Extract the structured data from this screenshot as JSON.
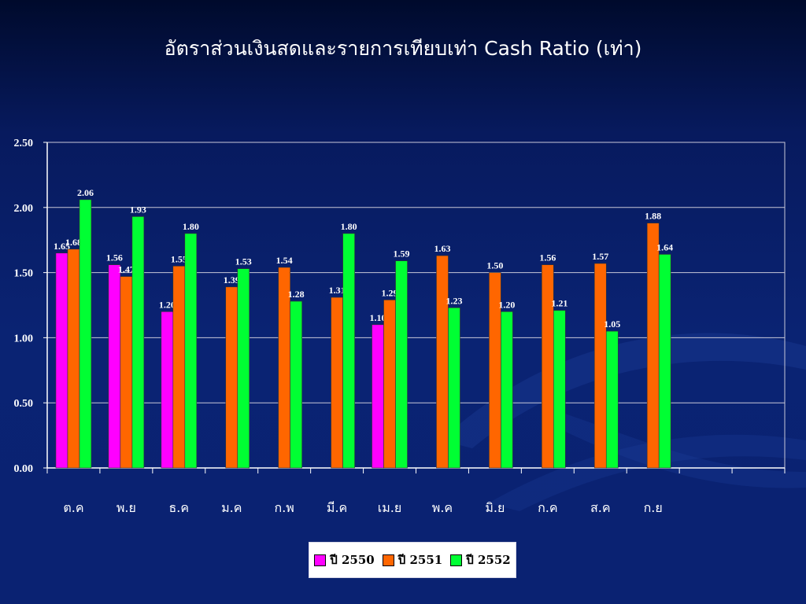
{
  "slide": {
    "title": "อัตราส่วนเงินสดและรายการเทียบเท่า Cash Ratio (เท่า)"
  },
  "chart_data": {
    "type": "bar",
    "title": "อัตราส่วนเงินสดและรายการเทียบเท่า Cash Ratio (เท่า)",
    "xlabel": "",
    "ylabel": "",
    "ylim": [
      0,
      2.5
    ],
    "yticks": [
      "0.00",
      "0.50",
      "1.00",
      "1.50",
      "2.00",
      "2.50"
    ],
    "grid": true,
    "legend_position": "bottom",
    "categories": [
      "ต.ค",
      "พ.ย",
      "ธ.ค",
      "ม.ค",
      "ก.พ",
      "มี.ค",
      "เม.ย",
      "พ.ค",
      "มิ.ย",
      "ก.ค",
      "ส.ค",
      "ก.ย",
      "",
      ""
    ],
    "series": [
      {
        "name": "ปี 2550",
        "color": "#ff00ff",
        "values": [
          1.65,
          1.56,
          1.2,
          null,
          null,
          null,
          1.1,
          null,
          null,
          null,
          null,
          null,
          null,
          null
        ]
      },
      {
        "name": "ปี 2551",
        "color": "#ff6600",
        "values": [
          1.68,
          1.47,
          1.55,
          1.39,
          1.54,
          1.31,
          1.29,
          1.63,
          1.5,
          1.56,
          1.57,
          1.88,
          null,
          null
        ]
      },
      {
        "name": "ปี 2552",
        "color": "#00ff33",
        "values": [
          2.06,
          1.93,
          1.8,
          1.53,
          1.28,
          1.8,
          1.59,
          1.23,
          1.2,
          1.21,
          1.05,
          1.64,
          null,
          null
        ]
      }
    ]
  }
}
